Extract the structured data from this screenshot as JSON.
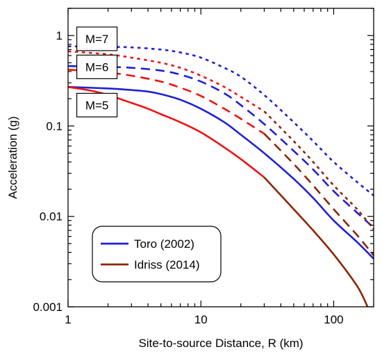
{
  "chart_data": {
    "type": "line",
    "xlabel": "Site-to-source Distance, R (km)",
    "ylabel": "Acceleration (g)",
    "xscale": "log",
    "yscale": "log",
    "xlim": [
      1,
      200
    ],
    "ylim": [
      0.001,
      2
    ],
    "x_ticks": [
      1,
      10,
      100
    ],
    "x_tick_labels": [
      "1",
      "10",
      "100"
    ],
    "y_ticks": [
      0.001,
      0.01,
      0.1,
      1
    ],
    "y_tick_labels": [
      "0.001",
      "0.01",
      "0.1",
      "1"
    ],
    "grid": false,
    "annotations": [
      {
        "text": "M=7",
        "x": 1.65,
        "y": 0.92
      },
      {
        "text": "M=6",
        "x": 1.65,
        "y": 0.45
      },
      {
        "text": "M=5",
        "x": 1.65,
        "y": 0.17
      }
    ],
    "legend": {
      "placement": "bottom-left",
      "entries": [
        {
          "label": "Toro (2002)",
          "color": "#1f1fd6"
        },
        {
          "label": "Idriss (2014)",
          "color": "#8b2500"
        }
      ]
    },
    "colors": {
      "toro": "#1f1fd6",
      "idriss_near": "#ee1111",
      "idriss_far": "#8b2500"
    },
    "series": [
      {
        "model": "Toro (2002)",
        "magnitude": 5,
        "style": "solid",
        "color": "#1f1fd6",
        "x": [
          1,
          2,
          3,
          4,
          5,
          7,
          10,
          15,
          20,
          30,
          50,
          70,
          100,
          150,
          200
        ],
        "y": [
          0.27,
          0.26,
          0.25,
          0.24,
          0.225,
          0.195,
          0.155,
          0.11,
          0.08,
          0.05,
          0.026,
          0.016,
          0.009,
          0.0052,
          0.0034
        ]
      },
      {
        "model": "Toro (2002)",
        "magnitude": 6,
        "style": "dashed",
        "color": "#1f1fd6",
        "x": [
          1,
          2,
          3,
          5,
          7,
          10,
          15,
          20,
          30,
          50,
          70,
          100,
          150,
          200
        ],
        "y": [
          0.46,
          0.45,
          0.44,
          0.41,
          0.37,
          0.31,
          0.23,
          0.17,
          0.105,
          0.053,
          0.033,
          0.019,
          0.011,
          0.0075
        ]
      },
      {
        "model": "Toro (2002)",
        "magnitude": 7,
        "style": "dotted",
        "color": "#1f1fd6",
        "x": [
          1,
          2,
          3,
          5,
          7,
          10,
          15,
          20,
          30,
          50,
          70,
          100,
          150,
          200
        ],
        "y": [
          0.76,
          0.75,
          0.74,
          0.7,
          0.65,
          0.57,
          0.44,
          0.35,
          0.22,
          0.11,
          0.068,
          0.04,
          0.024,
          0.017
        ]
      },
      {
        "model": "Idriss (2014)",
        "magnitude": 5,
        "style": "solid",
        "color": "#ee1111",
        "x": [
          1,
          1.5,
          2,
          3,
          4,
          5,
          7,
          10,
          15,
          20,
          30
        ],
        "y": [
          0.27,
          0.245,
          0.22,
          0.18,
          0.155,
          0.135,
          0.11,
          0.085,
          0.058,
          0.043,
          0.027
        ]
      },
      {
        "model": "Idriss (2014)",
        "magnitude": 5,
        "style": "solid",
        "color": "#8b2500",
        "x": [
          30,
          50,
          70,
          100,
          150,
          180
        ],
        "y": [
          0.027,
          0.012,
          0.007,
          0.0038,
          0.0017,
          0.001
        ]
      },
      {
        "model": "Idriss (2014)",
        "magnitude": 6,
        "style": "dashed",
        "color": "#ee1111",
        "x": [
          1,
          2,
          3,
          5,
          7,
          10,
          15,
          20,
          30
        ],
        "y": [
          0.42,
          0.39,
          0.36,
          0.31,
          0.265,
          0.215,
          0.155,
          0.12,
          0.082
        ]
      },
      {
        "model": "Idriss (2014)",
        "magnitude": 6,
        "style": "dashed",
        "color": "#8b2500",
        "x": [
          30,
          50,
          70,
          100,
          150,
          200
        ],
        "y": [
          0.082,
          0.038,
          0.022,
          0.012,
          0.0062,
          0.0037
        ]
      },
      {
        "model": "Idriss (2014)",
        "magnitude": 7,
        "style": "dotted",
        "color": "#ee1111",
        "x": [
          1,
          2,
          3,
          5,
          7,
          10,
          15,
          20,
          30
        ],
        "y": [
          0.67,
          0.62,
          0.57,
          0.5,
          0.44,
          0.36,
          0.27,
          0.21,
          0.145
        ]
      },
      {
        "model": "Idriss (2014)",
        "magnitude": 7,
        "style": "dotted",
        "color": "#8b2500",
        "x": [
          30,
          50,
          70,
          100,
          150,
          200
        ],
        "y": [
          0.145,
          0.068,
          0.04,
          0.022,
          0.012,
          0.0072
        ]
      }
    ]
  }
}
